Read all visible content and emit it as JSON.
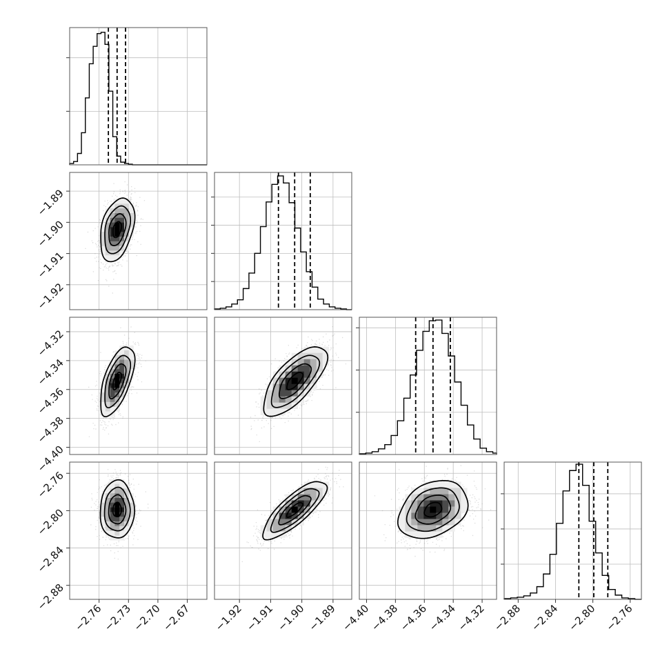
{
  "chart_data": {
    "type": "corner",
    "parameters": [
      "",
      "",
      "",
      ""
    ],
    "grid": true,
    "histograms": [
      {
        "edges_start": -2.79,
        "bin_width": 0.004,
        "counts": [
          2,
          5,
          17,
          48,
          100,
          151,
          177,
          196,
          198,
          180,
          110,
          42,
          13,
          4,
          2,
          1,
          0,
          0,
          0,
          0,
          0,
          0,
          0,
          0,
          0,
          0,
          0,
          0,
          0,
          0,
          0,
          0,
          0,
          0,
          0,
          0,
          0,
          0,
          0,
          0,
          0,
          0,
          0,
          0,
          0,
          0,
          0,
          0,
          0,
          0
        ],
        "quantiles": [
          -2.7505,
          -2.7416,
          -2.733
        ],
        "ylim": [
          0,
          205
        ],
        "yticks": [
          80,
          160
        ]
      },
      {
        "edges_start": -1.928,
        "bin_width": 0.00184,
        "counts": [
          1,
          2,
          4,
          8,
          14,
          30,
          52,
          80,
          118,
          153,
          178,
          190,
          180,
          152,
          116,
          82,
          54,
          32,
          15,
          8,
          4,
          2,
          1,
          0,
          0,
          0,
          0,
          0,
          0,
          0
        ],
        "quantiles": [
          -1.9075,
          -1.9023,
          -1.8973
        ],
        "ylim": [
          0,
          195
        ],
        "yticks": [
          40,
          80,
          120,
          160
        ]
      },
      {
        "edges_start": -4.405,
        "bin_width": 0.0044,
        "counts": [
          1,
          2,
          4,
          8,
          14,
          27,
          48,
          80,
          113,
          148,
          175,
          190,
          191,
          172,
          140,
          103,
          70,
          42,
          22,
          9,
          4,
          2,
          1,
          0,
          0
        ],
        "quantiles": [
          -4.366,
          -4.354,
          -4.342
        ],
        "ylim": [
          0,
          195
        ],
        "yticks": [
          60,
          120,
          180
        ]
      },
      {
        "edges_start": -2.895,
        "bin_width": 0.007,
        "counts": [
          1,
          2,
          3,
          5,
          9,
          18,
          36,
          64,
          108,
          154,
          183,
          192,
          162,
          111,
          66,
          34,
          14,
          6,
          2,
          1,
          0
        ],
        "quantiles": [
          -2.815,
          -2.799,
          -2.784
        ],
        "ylim": [
          0,
          195
        ],
        "yticks": [
          50,
          100,
          150
        ]
      }
    ],
    "axes": [
      {
        "range": [
          -2.79,
          -2.65
        ],
        "ticks": [
          -2.76,
          -2.73,
          -2.7,
          -2.67
        ],
        "tick_labels": [
          "−2.76",
          "−2.73",
          "−2.70",
          "−2.67"
        ]
      },
      {
        "range": [
          -1.928,
          -1.884
        ],
        "ticks": [
          -1.92,
          -1.91,
          -1.9,
          -1.89
        ],
        "tick_labels": [
          "−1.92",
          "−1.91",
          "−1.90",
          "−1.89"
        ]
      },
      {
        "range": [
          -4.405,
          -4.31
        ],
        "ticks": [
          -4.4,
          -4.38,
          -4.36,
          -4.34,
          -4.32
        ],
        "tick_labels": [
          "−4.40",
          "−4.38",
          "−4.36",
          "−4.34",
          "−4.32"
        ]
      },
      {
        "range": [
          -2.895,
          -2.748
        ],
        "ticks": [
          -2.88,
          -2.84,
          -2.8,
          -2.76
        ],
        "tick_labels": [
          "−2.88",
          "−2.84",
          "−2.80",
          "−2.76"
        ]
      }
    ],
    "joint": [
      {
        "row": 1,
        "col": 0,
        "mean": [
          -2.7416,
          -1.9023
        ],
        "sd": [
          0.0087,
          0.0051
        ],
        "rho": 0.35
      },
      {
        "row": 2,
        "col": 0,
        "mean": [
          -2.7416,
          -4.354
        ],
        "sd": [
          0.0087,
          0.012
        ],
        "rho": 0.6
      },
      {
        "row": 2,
        "col": 1,
        "mean": [
          -1.9023,
          -4.354
        ],
        "sd": [
          0.0051,
          0.012
        ],
        "rho": 0.7
      },
      {
        "row": 3,
        "col": 0,
        "mean": [
          -2.7416,
          -2.799
        ],
        "sd": [
          0.0087,
          0.0155
        ],
        "rho": 0.02
      },
      {
        "row": 3,
        "col": 1,
        "mean": [
          -1.9023,
          -2.799
        ],
        "sd": [
          0.0051,
          0.0155
        ],
        "rho": 0.8
      },
      {
        "row": 3,
        "col": 2,
        "mean": [
          -4.354,
          -2.799
        ],
        "sd": [
          0.012,
          0.0155
        ],
        "rho": 0.3
      }
    ],
    "contour_levels_sigma": [
      0.5,
      1.0,
      1.5,
      2.0
    ]
  }
}
